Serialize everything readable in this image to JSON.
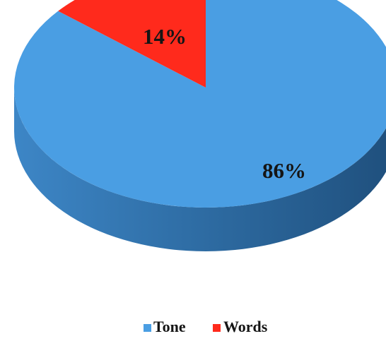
{
  "chart_data": {
    "type": "pie",
    "style": "3d",
    "series": [
      {
        "name": "Tone",
        "value": 86,
        "label": "86%",
        "color": "#4a9ee3"
      },
      {
        "name": "Words",
        "value": 14,
        "label": "14%",
        "color": "#ff2a1c"
      }
    ],
    "legend_placement": "bottom"
  }
}
